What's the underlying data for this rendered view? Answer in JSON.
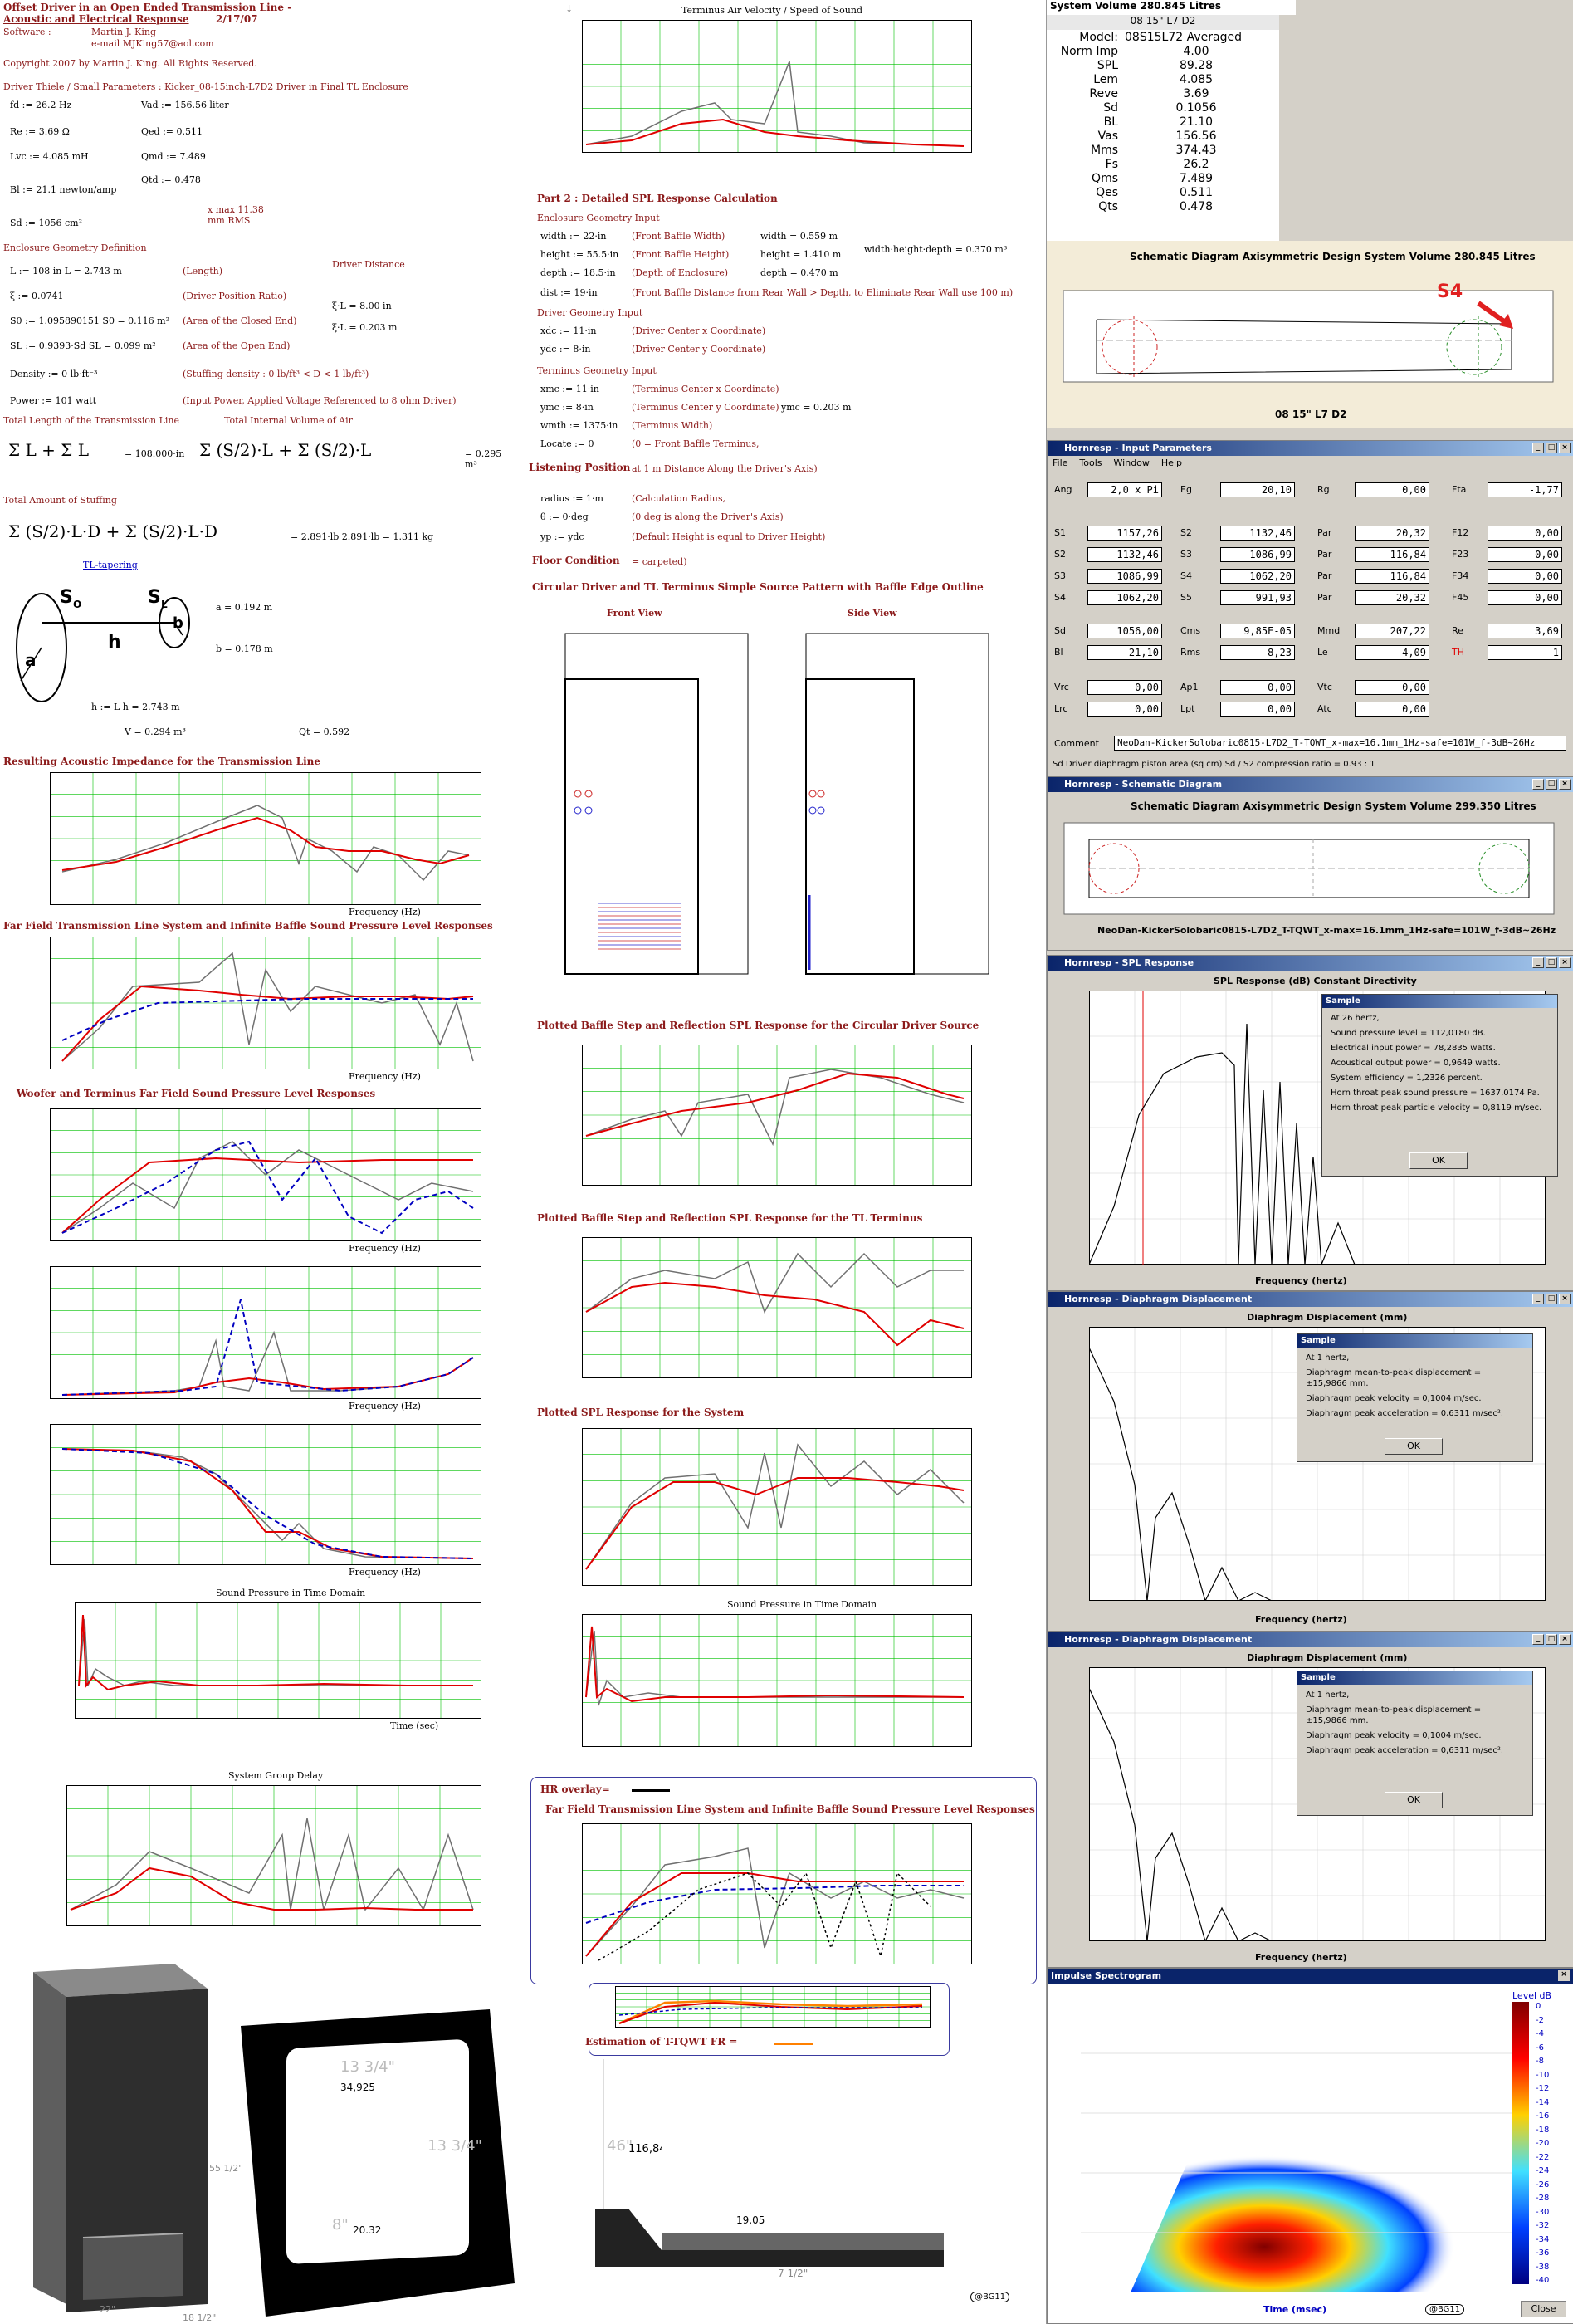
{
  "left": {
    "title_line1": "Offset Driver in an Open Ended Transmission Line -",
    "title_line2": "Acoustic and Electrical Response",
    "date": "2/17/07",
    "software_label": "Software :",
    "author": "Martin J. King",
    "email": "e-mail  MJKing57@aol.com",
    "copyright": "Copyright 2007 by Martin J. King. All Rights Reserved.",
    "ts_params": "Driver Thiele / Small Parameters : Kicker_08-15inch-L7D2  Driver in Final TL Enclosure",
    "param_fd": "fd := 26.2 Hz",
    "param_vad": "Vad := 156.56 liter",
    "param_re": "Re := 3.69 Ω",
    "param_qed": "Qed := 0.511",
    "param_lvc": "Lvc := 4.085 mH",
    "param_qmd": "Qmd := 7.489",
    "param_bl": "Bl := 21.1 newton/amp",
    "param_qtd": "Qtd := 0.478",
    "param_xmax": "x max 11.38 mm RMS",
    "param_sd": "Sd := 1056 cm²",
    "encl_geom": "Enclosure Geometry Definition",
    "driver_distance": "Driver Distance",
    "geom_L": "L := 108 in      L = 2.743 m",
    "geom_L_note": "(Length)",
    "geom_xi": "ξ := 0.0741",
    "geom_xi_note": "(Driver Position Ratio)",
    "geom_s0": "S0 := 1.095890151 S0 = 0.116 m²",
    "geom_s0_note": "(Area of the Closed End)",
    "geom_sl": "SL := 0.9393·Sd   SL = 0.099 m²",
    "geom_sl_note": "(Area of the Open End)",
    "geom_density": "Density := 0 lb·ft⁻³",
    "geom_density_note": "(Stuffing density : 0 lb/ft³ < D < 1 lb/ft³)",
    "geom_power": "Power := 101 watt",
    "geom_power_note": "(Input Power, Applied Voltage Referenced to 8 ohm Driver)",
    "xil1": "ξ·L = 8.00 in",
    "xil2": "ξ·L = 0.203 m",
    "total_length": "Total Length of the Transmission Line",
    "total_volume": "Total Internal Volume of Air",
    "total_length_val": "= 108.000·in",
    "total_volume_val": "= 0.295 m³",
    "total_stuffing": "Total Amount of Stuffing",
    "stuffing_val": "= 2.891·lb      2.891·lb = 1.311 kg",
    "tl_tapering": "TL-tapering",
    "a_val": "a = 0.192 m",
    "b_val": "b = 0.178 m",
    "h_val": "h := L     h = 2.743 m",
    "v_val": "V = 0.294 m³",
    "qt_val": "Qt = 0.592",
    "plot_titles": [
      "Resulting Acoustic Impedance for the Transmission Line",
      "Far Field Transmission Line System and Infinite Baffle Sound Pressure Level Responses",
      "Woofer and Terminus Far Field Sound Pressure Level Responses",
      "Sound Pressure in Time Domain",
      "System Group Delay"
    ],
    "xlabel_freq": "Frequency (Hz)",
    "xlabel_time": "Time (sec)"
  },
  "mid": {
    "velocity_title": "Terminus Air Velocity / Speed of Sound",
    "part2": "Part 2 : Detailed SPL Response Calculation",
    "encl_input": "Enclosure Geometry Input",
    "width": "width := 22·in",
    "width_note": "(Front Baffle Width)",
    "width_m": "width = 0.559 m",
    "height": "height := 55.5·in",
    "height_note": "(Front Baffle Height)",
    "height_m": "height = 1.410 m",
    "depth": "depth := 18.5·in",
    "depth_note": "(Depth of Enclosure)",
    "depth_m": "depth = 0.470 m",
    "whd": "width·height·depth = 0.370 m³",
    "dist": "dist := 19·in",
    "dist_note": "(Front Baffle Distance from Rear Wall > Depth, to Eliminate Rear Wall use 100 m)",
    "driver_input": "Driver Geometry Input",
    "xdc": "xdc := 11·in",
    "xdc_note": "(Driver Center x Coordinate)",
    "ydc": "ydc := 8·in",
    "ydc_note": "(Driver Center y Coordinate)",
    "term_input": "Terminus Geometry Input",
    "xmc": "xmc := 11·in",
    "xmc_note": "(Terminus Center x Coordinate)",
    "ymc": "ymc := 8·in",
    "ymc_note": "(Terminus Center y Coordinate)",
    "ymc_m": "ymc = 0.203 m",
    "wmth": "wmth := 1375·in",
    "wmth_note": "(Terminus Width)",
    "locate": "Locate := 0",
    "locate_note": "(0 = Front Baffle Terminus,",
    "listening": "Listening Position",
    "listening_note": "at 1 m Distance Along the Driver's Axis)",
    "radius": "radius := 1·m",
    "radius_note": "(Calculation Radius,",
    "theta": "θ := 0·deg",
    "theta_note": "(0 deg is along the Driver's Axis)",
    "yp": "yp := ydc",
    "yp_note": "(Default Height is equal to Driver Height)",
    "floor": "Floor Condition",
    "floor_note": "= carpeted)",
    "circ_title": "Circular Driver and TL Terminus Simple Source Pattern with Baffle Edge Outline",
    "front_view": "Front View",
    "side_view": "Side View",
    "plot_titles": [
      "Plotted Baffle Step and Reflection SPL Response for the Circular Driver Source",
      "Plotted Baffle Step and Reflection SPL Response for the TL Terminus",
      "Plotted SPL Response for the System",
      "Sound Pressure in Time Domain"
    ],
    "hr_overlay": "HR overlay=",
    "ff_title": "Far Field Transmission Line System and Infinite Baffle Sound Pressure Level Responses",
    "estimation": "Estimation  of  T-TQWT FR =",
    "dim_34925": "34,925",
    "dim_1334a": "13 3/4\"",
    "dim_1334b": "13 3/4\"",
    "dim_8": "8\"",
    "dim_2032": "20.32",
    "dim_46": "46\"",
    "dim_11684": "116,84",
    "dim_1905": "19,05",
    "dim_712": "7 1/2\"",
    "dim_22": "22\"",
    "dim_1812": "18 1/2\"",
    "dim_55": "55 1/2\"",
    "badge": "@BG11"
  },
  "right": {
    "sysvol": "System Volume 280.845 Litres",
    "driver_name": "08 15\" L7 D2",
    "ts_table": [
      [
        "Model:",
        "08S15L72 Averaged"
      ],
      [
        "Norm Imp",
        "4.00"
      ],
      [
        "SPL",
        "89.28"
      ],
      [
        "Lem",
        "4.085"
      ],
      [
        "Reve",
        "3.69"
      ],
      [
        "Sd",
        "0.1056"
      ],
      [
        "BL",
        "21.10"
      ],
      [
        "Vas",
        "156.56"
      ],
      [
        "Mms",
        "374.43"
      ],
      [
        "Fs",
        "26.2"
      ],
      [
        "Qms",
        "7.489"
      ],
      [
        "Qes",
        "0.511"
      ],
      [
        "Qts",
        "0.478"
      ]
    ],
    "schem_header": "Schematic Diagram   Axisymmetric Design   System Volume 280.845 Litres",
    "s4": "S4",
    "schem_caption": "08 15\" L7 D2",
    "input_title": "Hornresp - Input Parameters",
    "menu": [
      "File",
      "Tools",
      "Window",
      "Help"
    ],
    "fields": {
      "ang_l": "Ang",
      "ang": "2,0 x Pi",
      "eg_l": "Eg",
      "eg": "20,10",
      "rg_l": "Rg",
      "rg": "0,00",
      "fta_l": "Fta",
      "fta": "-1,77",
      "s1_l": "S1",
      "s1": "1157,26",
      "s2a_l": "S2",
      "s2a": "1132,46",
      "par1_l": "Par",
      "par1": "20,32",
      "f12_l": "F12",
      "f12": "0,00",
      "s2b_l": "S2",
      "s2b": "1132,46",
      "s3a_l": "S3",
      "s3a": "1086,99",
      "par2_l": "Par",
      "par2": "116,84",
      "f23_l": "F23",
      "f23": "0,00",
      "s3b_l": "S3",
      "s3b": "1086,99",
      "s4a_l": "S4",
      "s4a": "1062,20",
      "par3_l": "Par",
      "par3": "116,84",
      "f34_l": "F34",
      "f34": "0,00",
      "s4b_l": "S4",
      "s4b": "1062,20",
      "s5_l": "S5",
      "s5": "991,93",
      "par4_l": "Par",
      "par4": "20,32",
      "f45_l": "F45",
      "f45": "0,00",
      "sd_l": "Sd",
      "sd": "1056,00",
      "cms_l": "Cms",
      "cms": "9,85E-05",
      "mmd_l": "Mmd",
      "mmd": "207,22",
      "re_l": "Re",
      "re": "3,69",
      "bl_l": "Bl",
      "bl": "21,10",
      "rms_l": "Rms",
      "rms": "8,23",
      "le_l": "Le",
      "le": "4,09",
      "th_l": "TH",
      "th": "1",
      "vrc_l": "Vrc",
      "vrc": "0,00",
      "ap1_l": "Ap1",
      "ap1": "0,00",
      "vtc_l": "Vtc",
      "vtc": "0,00",
      "lrc_l": "Lrc",
      "lrc": "0,00",
      "lpt_l": "Lpt",
      "lpt": "0,00",
      "atc_l": "Atc",
      "atc": "0,00",
      "comment_l": "Comment",
      "comment": "NeoDan-KickerSolobaric0815-L7D2_T-TQWT_x-max=16.1mm_1Hz-safe=101W_f-3dB~26Hz"
    },
    "status_bar": "Sd   Driver diaphragm piston area (sq cm)   Sd / S2 compression ratio = 0.93 : 1",
    "schem2_title": "Hornresp - Schematic Diagram",
    "schem2_header": "Schematic Diagram   Axisymmetric Design   System Volume 299.350 Litres",
    "schem2_caption": "NeoDan-KickerSolobaric0815-L7D2_T-TQWT_x-max=16.1mm_1Hz-safe=101W_f-3dB~26Hz",
    "spl_title": "Hornresp - SPL Response",
    "spl_chart_title": "SPL Response (dB)    Constant Directivity",
    "spl_x": "Frequency (hertz)",
    "sample": "Sample",
    "spl_dlg": [
      "At 26 hertz,",
      "Sound pressure level = 112,0180 dB.",
      "Electrical input power = 78,2835 watts.",
      "Acoustical output power = 0,9649 watts.",
      "System efficiency = 1,2326 percent.",
      "Horn throat peak sound pressure = 1637,0174 Pa.",
      "Horn throat peak particle velocity = 0,8119 m/sec."
    ],
    "ok": "OK",
    "disp_title": "Hornresp - Diaphragm Displacement",
    "disp_chart_title": "Diaphragm Displacement (mm)",
    "disp_dlg": [
      "At 1 hertz,",
      "Diaphragm mean-to-peak displacement = ±15,9866 mm.",
      "Diaphragm peak velocity = 0,1004 m/sec.",
      "Diaphragm peak acceleration = 0,6311 m/sec²."
    ],
    "impulse_title": "Impulse Spectrogram",
    "level_label": "Level   dB",
    "level_ticks": [
      "0",
      "-2",
      "-4",
      "-6",
      "-8",
      "-10",
      "-12",
      "-14",
      "-16",
      "-18",
      "-20",
      "-22",
      "-24",
      "-26",
      "-28",
      "-30",
      "-32",
      "-34",
      "-36",
      "-38",
      "-40"
    ],
    "time_label": "Time (msec)",
    "close": "Close",
    "badge": "@BG11"
  },
  "colors": {
    "mathcad_red": "#8b1a1a",
    "grid_green": "#00c000",
    "curve_red": "#e00000",
    "curve_gray": "#707070",
    "curve_blue": "#0000c0",
    "win_title": "#0a246a",
    "win_bg": "#d4d0c8"
  }
}
